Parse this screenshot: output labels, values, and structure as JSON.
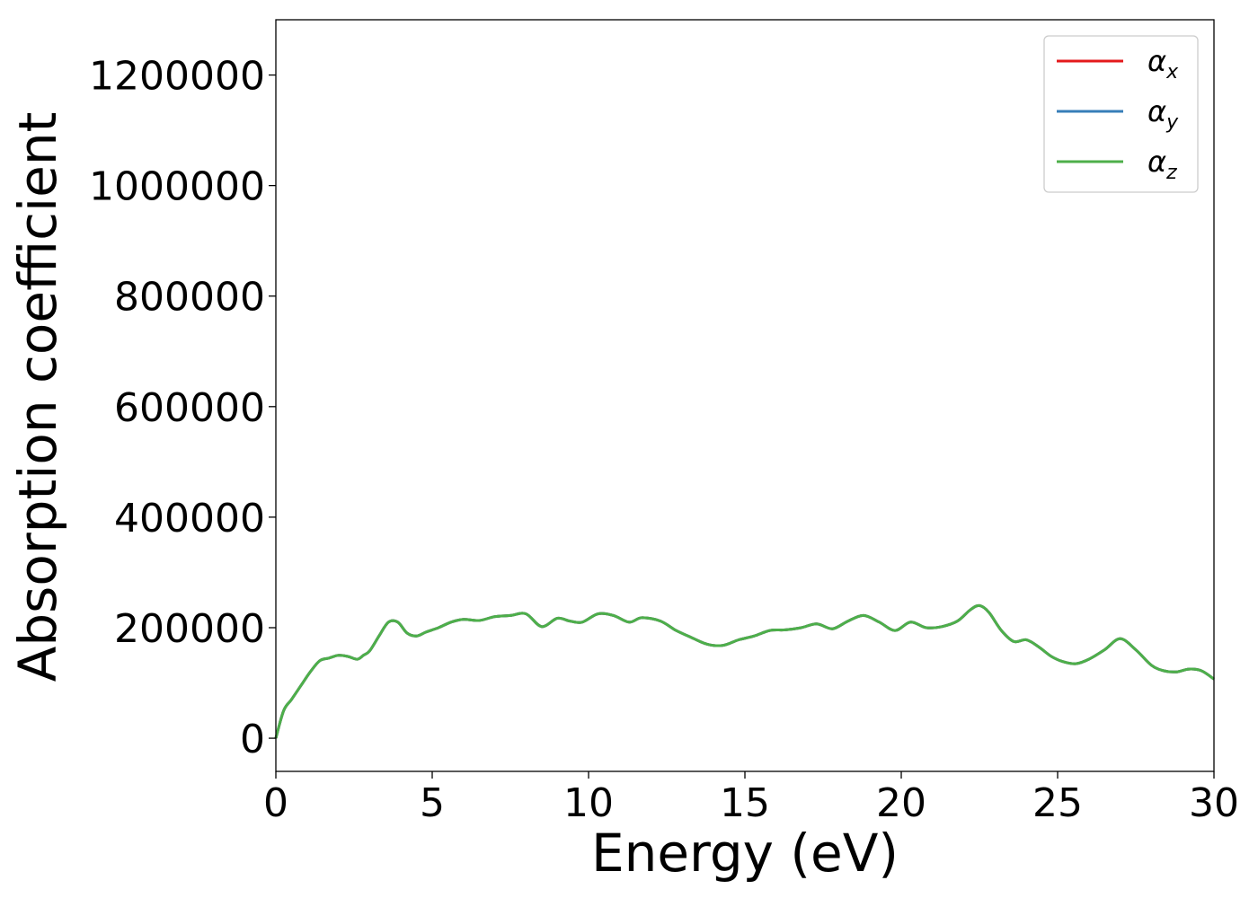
{
  "chart_data": {
    "type": "line",
    "title": "",
    "xlabel": "Energy (eV)",
    "ylabel": "Absorption coefficient",
    "xlim": [
      0,
      30
    ],
    "ylim": [
      -60000,
      1300000
    ],
    "xticks": [
      0,
      5,
      10,
      15,
      20,
      25,
      30
    ],
    "xtick_labels": [
      "0",
      "5",
      "10",
      "15",
      "20",
      "25",
      "30"
    ],
    "yticks": [
      0,
      200000,
      400000,
      600000,
      800000,
      1000000,
      1200000
    ],
    "ytick_labels": [
      "0",
      "200000",
      "400000",
      "600000",
      "800000",
      "1000000",
      "1200000"
    ],
    "grid": false,
    "legend_position": "top-right",
    "x": [
      0,
      0.25,
      0.5,
      0.8,
      1.1,
      1.4,
      1.7,
      2.0,
      2.3,
      2.6,
      2.8,
      3.0,
      3.3,
      3.6,
      3.9,
      4.2,
      4.5,
      4.8,
      5.2,
      5.6,
      6.0,
      6.5,
      7.0,
      7.5,
      8.0,
      8.5,
      9.0,
      9.4,
      9.8,
      10.3,
      10.8,
      11.3,
      11.7,
      12.3,
      12.8,
      13.3,
      13.8,
      14.3,
      14.8,
      15.3,
      15.8,
      16.3,
      16.8,
      17.3,
      17.8,
      18.3,
      18.8,
      19.3,
      19.8,
      20.3,
      20.8,
      21.3,
      21.8,
      22.2,
      22.5,
      22.8,
      23.2,
      23.6,
      24.0,
      24.4,
      24.8,
      25.2,
      25.6,
      26.0,
      26.5,
      27.0,
      27.5,
      28.0,
      28.4,
      28.8,
      29.2,
      29.6,
      30.0
    ],
    "series": [
      {
        "name": "α_x",
        "symbol": "α",
        "subscript": "x",
        "color": "#e41a1c",
        "same_as": "α_z"
      },
      {
        "name": "α_y",
        "symbol": "α",
        "subscript": "y",
        "color": "#377eb8",
        "same_as": "α_z"
      },
      {
        "name": "α_z",
        "symbol": "α",
        "subscript": "z",
        "color": "#4daf4a",
        "values": [
          0,
          50000,
          70000,
          95000,
          120000,
          140000,
          145000,
          150000,
          148000,
          143000,
          150000,
          158000,
          185000,
          210000,
          210000,
          190000,
          185000,
          192000,
          200000,
          210000,
          215000,
          213000,
          220000,
          222000,
          225000,
          202000,
          217000,
          212000,
          210000,
          225000,
          222000,
          210000,
          218000,
          212000,
          195000,
          182000,
          170000,
          168000,
          178000,
          185000,
          195000,
          196000,
          200000,
          207000,
          198000,
          212000,
          222000,
          210000,
          195000,
          210000,
          200000,
          202000,
          212000,
          232000,
          240000,
          228000,
          195000,
          175000,
          178000,
          165000,
          148000,
          138000,
          135000,
          143000,
          160000,
          180000,
          160000,
          132000,
          122000,
          120000,
          125000,
          122000,
          107000
        ]
      }
    ]
  }
}
